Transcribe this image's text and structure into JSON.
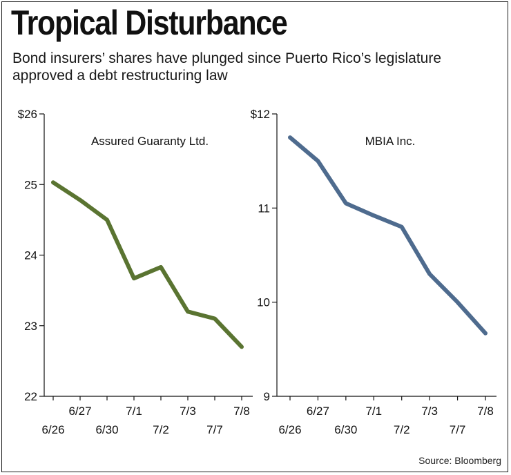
{
  "header": {
    "title": "Tropical Disturbance",
    "subtitle": "Bond insurers’ shares have plunged since Puerto Rico’s legislature approved a debt restructuring law"
  },
  "source": "Source: Bloomberg",
  "chart_data": [
    {
      "type": "line",
      "title": "Assured Guaranty Ltd.",
      "ylim": [
        22,
        26
      ],
      "yticks": [
        22,
        23,
        24,
        25,
        26
      ],
      "ytick_labels": [
        "22",
        "23",
        "24",
        "25",
        "$26"
      ],
      "categories": [
        "6/26",
        "6/27",
        "6/30",
        "7/1",
        "7/2",
        "7/3",
        "7/7",
        "7/8"
      ],
      "values": [
        25.03,
        24.78,
        24.5,
        23.67,
        23.83,
        23.2,
        23.1,
        22.7
      ],
      "color": "#5a7431"
    },
    {
      "type": "line",
      "title": "MBIA Inc.",
      "ylim": [
        9,
        12
      ],
      "yticks": [
        9,
        10,
        11,
        12
      ],
      "ytick_labels": [
        "9",
        "10",
        "11",
        "$12"
      ],
      "categories": [
        "6/26",
        "6/27",
        "6/30",
        "7/1",
        "7/2",
        "7/3",
        "7/7",
        "7/8"
      ],
      "values": [
        11.75,
        11.5,
        11.05,
        10.92,
        10.8,
        10.3,
        10.0,
        9.67
      ],
      "color": "#4e6b8e"
    }
  ]
}
